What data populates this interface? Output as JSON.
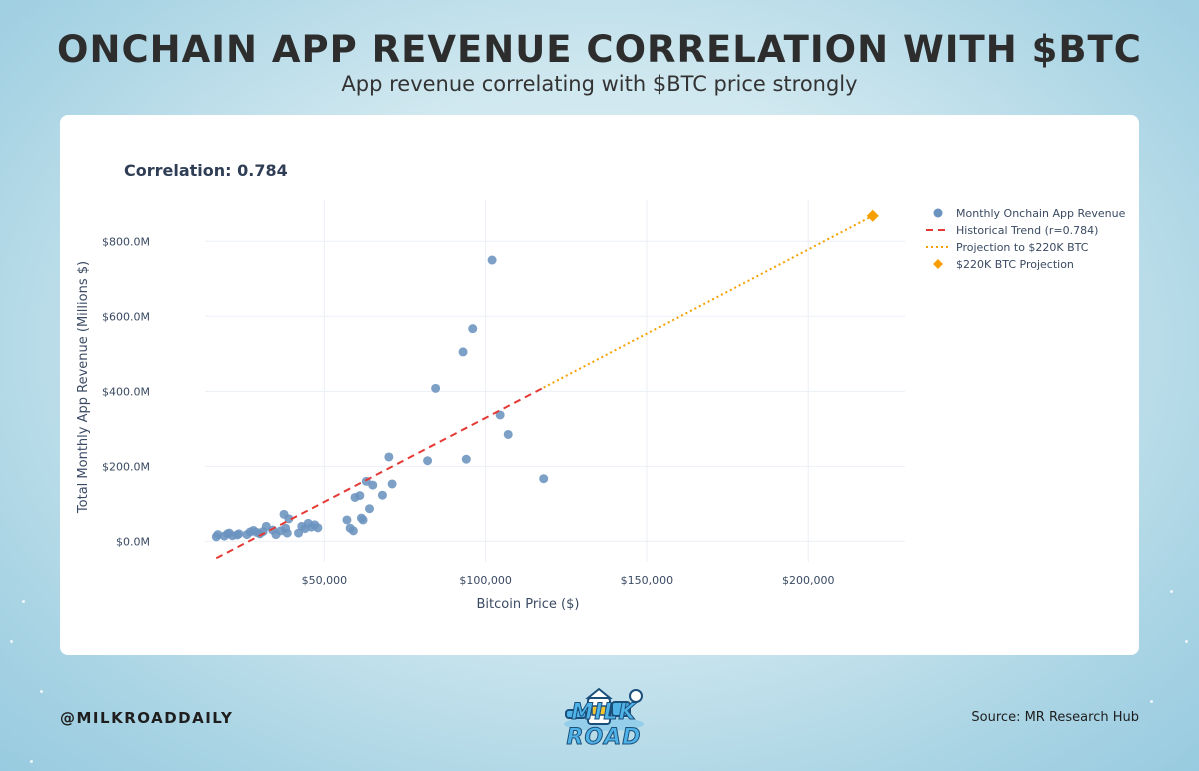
{
  "header": {
    "title": "ONCHAIN APP REVENUE CORRELATION WITH $BTC",
    "subtitle": "App revenue correlating with $BTC price strongly"
  },
  "footer": {
    "handle": "@MILKROADDAILY",
    "source": "Source: MR Research Hub",
    "logo_text": "MILK ROAD"
  },
  "colors": {
    "scatter": "#6b93bf",
    "trend": "#e53935",
    "projection": "#f5a000",
    "grid": "#ebeff5",
    "axis_text": "#3a4a63"
  },
  "chart_data": {
    "type": "scatter",
    "annotation": "Correlation: 0.784",
    "xlabel": "Bitcoin Price ($)",
    "ylabel": "Total Monthly App Revenue (Millions $)",
    "xlim": [
      13000,
      230000
    ],
    "ylim": [
      -55,
      910
    ],
    "x_ticks": [
      {
        "value": 50000,
        "label": "$50,000"
      },
      {
        "value": 100000,
        "label": "$100,000"
      },
      {
        "value": 150000,
        "label": "$150,000"
      },
      {
        "value": 200000,
        "label": "$200,000"
      }
    ],
    "y_ticks": [
      {
        "value": 0,
        "label": "$0.0M"
      },
      {
        "value": 200,
        "label": "$200.0M"
      },
      {
        "value": 400,
        "label": "$400.0M"
      },
      {
        "value": 600,
        "label": "$600.0M"
      },
      {
        "value": 800,
        "label": "$800.0M"
      }
    ],
    "grid": true,
    "legend_position": "right",
    "series": [
      {
        "name": "Monthly Onchain App Revenue",
        "kind": "scatter",
        "points": [
          [
            16500,
            12
          ],
          [
            17000,
            18
          ],
          [
            19000,
            14
          ],
          [
            20000,
            20
          ],
          [
            20500,
            22
          ],
          [
            21500,
            15
          ],
          [
            23000,
            17
          ],
          [
            23500,
            20
          ],
          [
            26000,
            18
          ],
          [
            27000,
            25
          ],
          [
            28000,
            29
          ],
          [
            29000,
            24
          ],
          [
            30000,
            20
          ],
          [
            31000,
            26
          ],
          [
            32000,
            40
          ],
          [
            34000,
            30
          ],
          [
            35000,
            18
          ],
          [
            36500,
            28
          ],
          [
            37500,
            72
          ],
          [
            38000,
            35
          ],
          [
            38500,
            22
          ],
          [
            39000,
            60
          ],
          [
            42000,
            22
          ],
          [
            43000,
            40
          ],
          [
            44000,
            34
          ],
          [
            45000,
            48
          ],
          [
            46000,
            38
          ],
          [
            47000,
            44
          ],
          [
            48000,
            36
          ],
          [
            57000,
            57
          ],
          [
            58000,
            35
          ],
          [
            59000,
            28
          ],
          [
            59500,
            117
          ],
          [
            61000,
            122
          ],
          [
            61500,
            62
          ],
          [
            62000,
            57
          ],
          [
            63000,
            160
          ],
          [
            64000,
            87
          ],
          [
            65000,
            150
          ],
          [
            68000,
            123
          ],
          [
            70000,
            225
          ],
          [
            71000,
            153
          ],
          [
            82000,
            215
          ],
          [
            84500,
            408
          ],
          [
            93000,
            505
          ],
          [
            94000,
            219
          ],
          [
            96000,
            567
          ],
          [
            102000,
            750
          ],
          [
            104500,
            337
          ],
          [
            107000,
            285
          ],
          [
            118000,
            167
          ]
        ]
      },
      {
        "name": "Historical Trend (r=0.784)",
        "kind": "line",
        "dash": "dashed",
        "points": [
          [
            16500,
            -45
          ],
          [
            118000,
            410
          ]
        ]
      },
      {
        "name": "Projection to $220K BTC",
        "kind": "line",
        "dash": "dotted",
        "points": [
          [
            118000,
            410
          ],
          [
            220000,
            868
          ]
        ]
      },
      {
        "name": "$220K BTC Projection",
        "kind": "marker",
        "marker": "diamond",
        "points": [
          [
            220000,
            868
          ]
        ]
      }
    ]
  }
}
